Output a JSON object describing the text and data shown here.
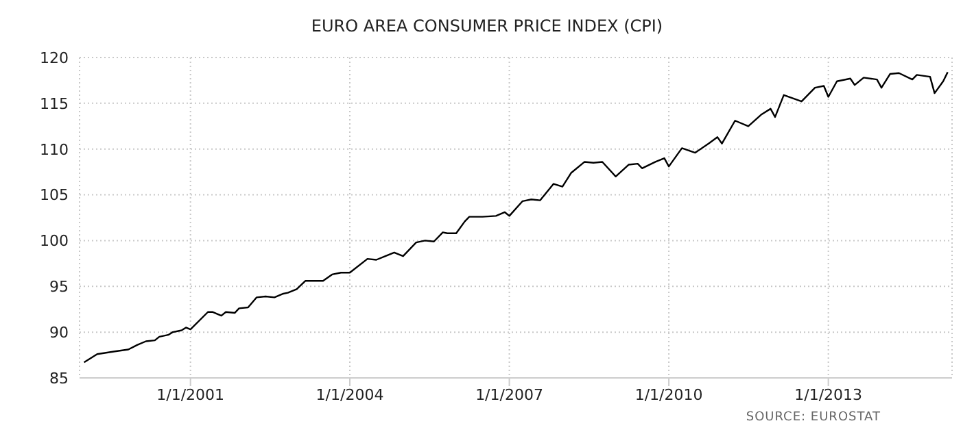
{
  "chart_data": {
    "type": "line",
    "title": "EURO AREA CONSUMER PRICE INDEX (CPI)",
    "annotations": [
      "SOURCE: EUROSTAT"
    ],
    "x": [
      "1999-01",
      "1999-04",
      "1999-08",
      "1999-11",
      "2000-01",
      "2000-03",
      "2000-05",
      "2000-06",
      "2000-08",
      "2000-09",
      "2000-11",
      "2000-12",
      "2001-01",
      "2001-05",
      "2001-06",
      "2001-08",
      "2001-09",
      "2001-11",
      "2001-12",
      "2002-02",
      "2002-04",
      "2002-06",
      "2002-08",
      "2002-10",
      "2002-11",
      "2003-01",
      "2003-03",
      "2003-05",
      "2003-07",
      "2003-09",
      "2003-11",
      "2004-01",
      "2004-05",
      "2004-07",
      "2004-09",
      "2004-11",
      "2005-01",
      "2005-04",
      "2005-06",
      "2005-08",
      "2005-10",
      "2005-11",
      "2006-01",
      "2006-03",
      "2006-04",
      "2006-07",
      "2006-10",
      "2006-12",
      "2007-01",
      "2007-04",
      "2007-06",
      "2007-08",
      "2007-11",
      "2008-01",
      "2008-03",
      "2008-06",
      "2008-08",
      "2008-10",
      "2009-01",
      "2009-04",
      "2009-06",
      "2009-07",
      "2009-10",
      "2009-12",
      "2010-01",
      "2010-04",
      "2010-07",
      "2010-10",
      "2010-12",
      "2011-01",
      "2011-04",
      "2011-07",
      "2011-10",
      "2011-12",
      "2012-01",
      "2012-03",
      "2012-07",
      "2012-10",
      "2012-12",
      "2013-01",
      "2013-03",
      "2013-06",
      "2013-07",
      "2013-09",
      "2013-12",
      "2014-01",
      "2014-03",
      "2014-05",
      "2014-08",
      "2014-09",
      "2014-12",
      "2015-01",
      "2015-03",
      "2015-04"
    ],
    "series": [
      {
        "color": "#000000",
        "values": [
          86.7,
          87.6,
          87.9,
          88.1,
          88.6,
          89.0,
          89.1,
          89.5,
          89.7,
          90.0,
          90.2,
          90.5,
          90.3,
          92.2,
          92.2,
          91.8,
          92.2,
          92.1,
          92.6,
          92.7,
          93.8,
          93.9,
          93.8,
          94.2,
          94.3,
          94.7,
          95.6,
          95.6,
          95.6,
          96.3,
          96.5,
          96.5,
          98.0,
          97.9,
          98.3,
          98.7,
          98.3,
          99.8,
          100.0,
          99.9,
          100.9,
          100.8,
          100.8,
          102.1,
          102.6,
          102.6,
          102.7,
          103.1,
          102.7,
          104.3,
          104.5,
          104.4,
          106.2,
          105.9,
          107.4,
          108.6,
          108.5,
          108.6,
          107.0,
          108.3,
          108.4,
          107.9,
          108.6,
          109.0,
          108.1,
          110.1,
          109.6,
          110.6,
          111.3,
          110.6,
          113.1,
          112.5,
          113.8,
          114.4,
          113.5,
          115.9,
          115.2,
          116.7,
          116.9,
          115.7,
          117.4,
          117.7,
          117.0,
          117.8,
          117.6,
          116.7,
          118.2,
          118.3,
          117.6,
          118.1,
          117.9,
          116.1,
          117.4,
          118.4
        ]
      }
    ],
    "xlim": [
      "1998-12",
      "2015-05"
    ],
    "xticks": [
      {
        "value": "2001-01-01",
        "label": "1/1/2001"
      },
      {
        "value": "2004-01-01",
        "label": "1/1/2004"
      },
      {
        "value": "2007-01-01",
        "label": "1/1/2007"
      },
      {
        "value": "2010-01-01",
        "label": "1/1/2010"
      },
      {
        "value": "2013-01-01",
        "label": "1/1/2013"
      }
    ],
    "ylim": [
      85,
      120
    ],
    "yticks": [
      85,
      90,
      95,
      100,
      105,
      110,
      115,
      120
    ],
    "grid": true,
    "legend": false,
    "marker": "none",
    "line_style": "solid"
  }
}
